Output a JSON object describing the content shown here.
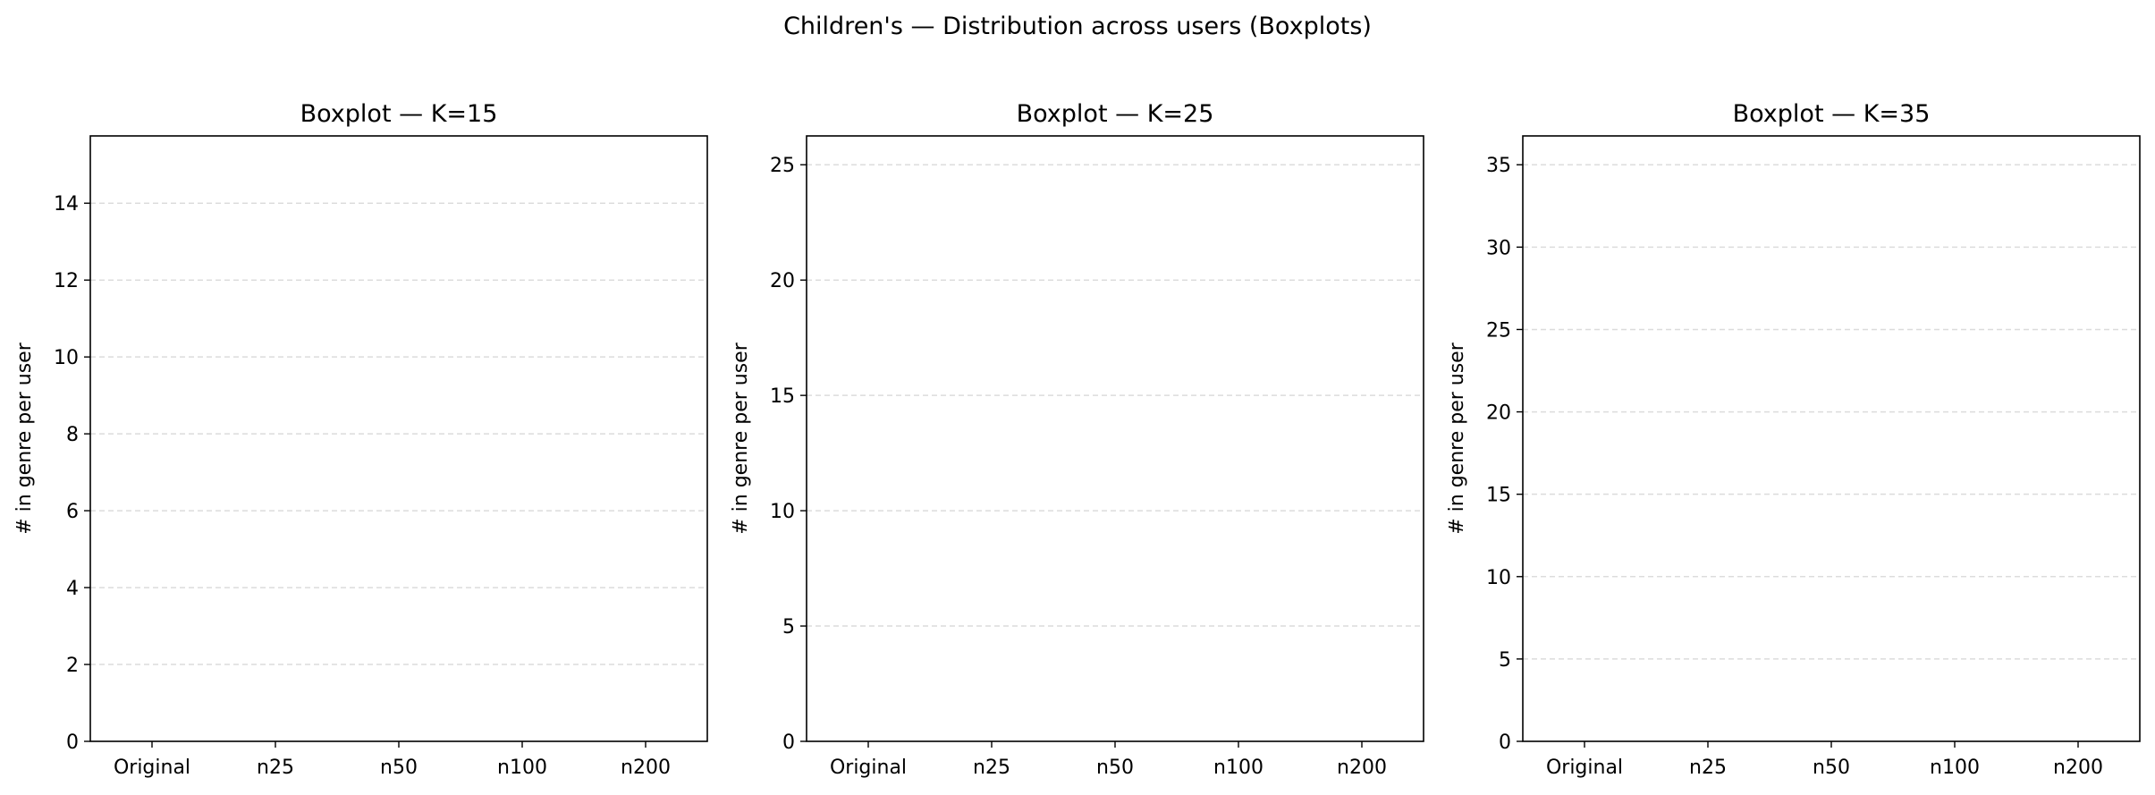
{
  "figure": {
    "title": "Children's — Distribution across users (Boxplots)"
  },
  "chart_data": [
    {
      "type": "boxplot",
      "title": "Boxplot — K=15",
      "xlabel": "",
      "ylabel": "# in genre per user",
      "categories": [
        "Original",
        "n25",
        "n50",
        "n100",
        "n200"
      ],
      "yticks": [
        0,
        2,
        4,
        6,
        8,
        10,
        12,
        14
      ],
      "ylim": [
        0,
        15.75
      ],
      "grid": "y-dashed",
      "boxes": []
    },
    {
      "type": "boxplot",
      "title": "Boxplot — K=25",
      "xlabel": "",
      "ylabel": "# in genre per user",
      "categories": [
        "Original",
        "n25",
        "n50",
        "n100",
        "n200"
      ],
      "yticks": [
        0,
        5,
        10,
        15,
        20,
        25
      ],
      "ylim": [
        0,
        26.25
      ],
      "grid": "y-dashed",
      "boxes": []
    },
    {
      "type": "boxplot",
      "title": "Boxplot — K=35",
      "xlabel": "",
      "ylabel": "# in genre per user",
      "categories": [
        "Original",
        "n25",
        "n50",
        "n100",
        "n200"
      ],
      "yticks": [
        0,
        5,
        10,
        15,
        20,
        25,
        30,
        35
      ],
      "ylim": [
        0,
        36.75
      ],
      "grid": "y-dashed",
      "boxes": []
    }
  ]
}
